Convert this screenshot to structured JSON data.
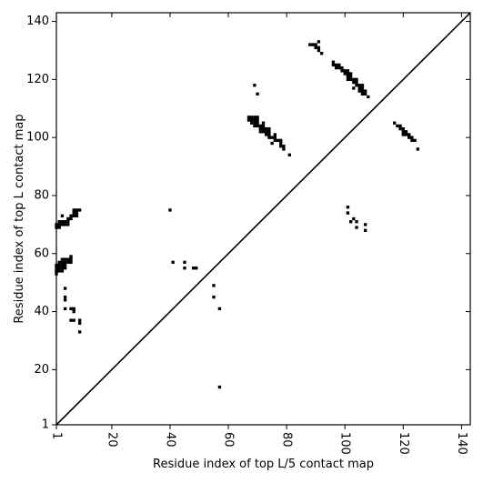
{
  "chart_data": {
    "type": "scatter",
    "title": "",
    "xlabel": "Residue index of top L/5 contact map",
    "ylabel": "Residue index of top L contact map",
    "xlim": [
      1,
      143
    ],
    "ylim": [
      1,
      143
    ],
    "xticks": [
      1,
      20,
      40,
      60,
      80,
      100,
      120,
      140
    ],
    "yticks": [
      1,
      20,
      40,
      60,
      80,
      100,
      120,
      140
    ],
    "xtick_rotation": -90,
    "grid": false,
    "diagonal": true,
    "marker": "square",
    "marker_color": "#000000",
    "series": [
      {
        "points": [
          [
            1,
            53
          ],
          [
            1,
            54
          ],
          [
            1,
            55
          ],
          [
            1,
            56
          ],
          [
            1,
            69
          ],
          [
            1,
            70
          ],
          [
            2,
            54
          ],
          [
            2,
            55
          ],
          [
            2,
            56
          ],
          [
            2,
            57
          ],
          [
            2,
            69
          ],
          [
            2,
            70
          ],
          [
            2,
            71
          ],
          [
            3,
            54
          ],
          [
            3,
            55
          ],
          [
            3,
            56
          ],
          [
            3,
            57
          ],
          [
            3,
            58
          ],
          [
            3,
            70
          ],
          [
            3,
            71
          ],
          [
            3,
            73
          ],
          [
            4,
            41
          ],
          [
            4,
            44
          ],
          [
            4,
            45
          ],
          [
            4,
            48
          ],
          [
            4,
            55
          ],
          [
            4,
            56
          ],
          [
            4,
            57
          ],
          [
            4,
            58
          ],
          [
            4,
            70
          ],
          [
            4,
            71
          ],
          [
            5,
            57
          ],
          [
            5,
            58
          ],
          [
            5,
            70
          ],
          [
            5,
            71
          ],
          [
            5,
            72
          ],
          [
            6,
            37
          ],
          [
            6,
            41
          ],
          [
            6,
            57
          ],
          [
            6,
            58
          ],
          [
            6,
            59
          ],
          [
            6,
            72
          ],
          [
            6,
            73
          ],
          [
            7,
            37
          ],
          [
            7,
            40
          ],
          [
            7,
            41
          ],
          [
            7,
            73
          ],
          [
            7,
            74
          ],
          [
            7,
            75
          ],
          [
            8,
            73
          ],
          [
            8,
            74
          ],
          [
            8,
            75
          ],
          [
            9,
            33
          ],
          [
            9,
            36
          ],
          [
            9,
            37
          ],
          [
            9,
            75
          ],
          [
            40,
            75
          ],
          [
            41,
            57
          ],
          [
            45,
            55
          ],
          [
            45,
            57
          ],
          [
            48,
            55
          ],
          [
            49,
            55
          ],
          [
            55,
            45
          ],
          [
            55,
            49
          ],
          [
            57,
            14
          ],
          [
            57,
            41
          ],
          [
            67,
            106
          ],
          [
            67,
            107
          ],
          [
            68,
            105
          ],
          [
            68,
            106
          ],
          [
            68,
            107
          ],
          [
            69,
            104
          ],
          [
            69,
            105
          ],
          [
            69,
            106
          ],
          [
            69,
            107
          ],
          [
            69,
            118
          ],
          [
            70,
            104
          ],
          [
            70,
            105
          ],
          [
            70,
            106
          ],
          [
            70,
            107
          ],
          [
            70,
            115
          ],
          [
            71,
            102
          ],
          [
            71,
            103
          ],
          [
            71,
            104
          ],
          [
            72,
            102
          ],
          [
            72,
            103
          ],
          [
            72,
            104
          ],
          [
            72,
            105
          ],
          [
            73,
            101
          ],
          [
            73,
            102
          ],
          [
            73,
            103
          ],
          [
            74,
            100
          ],
          [
            74,
            101
          ],
          [
            74,
            102
          ],
          [
            74,
            103
          ],
          [
            75,
            98
          ],
          [
            75,
            100
          ],
          [
            76,
            99
          ],
          [
            76,
            100
          ],
          [
            76,
            101
          ],
          [
            77,
            99
          ],
          [
            78,
            97
          ],
          [
            78,
            98
          ],
          [
            78,
            99
          ],
          [
            79,
            96
          ],
          [
            79,
            97
          ],
          [
            81,
            94
          ],
          [
            88,
            132
          ],
          [
            89,
            132
          ],
          [
            90,
            131
          ],
          [
            90,
            132
          ],
          [
            91,
            130
          ],
          [
            91,
            131
          ],
          [
            91,
            133
          ],
          [
            92,
            129
          ],
          [
            96,
            125
          ],
          [
            96,
            126
          ],
          [
            97,
            124
          ],
          [
            97,
            125
          ],
          [
            98,
            124
          ],
          [
            98,
            125
          ],
          [
            99,
            123
          ],
          [
            99,
            124
          ],
          [
            100,
            122
          ],
          [
            100,
            123
          ],
          [
            101,
            76
          ],
          [
            101,
            74
          ],
          [
            101,
            120
          ],
          [
            101,
            121
          ],
          [
            101,
            122
          ],
          [
            101,
            123
          ],
          [
            102,
            71
          ],
          [
            102,
            120
          ],
          [
            102,
            121
          ],
          [
            102,
            122
          ],
          [
            103,
            72
          ],
          [
            103,
            117
          ],
          [
            103,
            119
          ],
          [
            103,
            120
          ],
          [
            104,
            69
          ],
          [
            104,
            71
          ],
          [
            104,
            118
          ],
          [
            104,
            119
          ],
          [
            104,
            120
          ],
          [
            105,
            116
          ],
          [
            105,
            117
          ],
          [
            105,
            118
          ],
          [
            106,
            115
          ],
          [
            106,
            116
          ],
          [
            106,
            117
          ],
          [
            106,
            118
          ],
          [
            107,
            68
          ],
          [
            107,
            70
          ],
          [
            107,
            115
          ],
          [
            107,
            116
          ],
          [
            108,
            114
          ],
          [
            117,
            105
          ],
          [
            118,
            104
          ],
          [
            119,
            103
          ],
          [
            119,
            104
          ],
          [
            120,
            101
          ],
          [
            120,
            102
          ],
          [
            120,
            103
          ],
          [
            121,
            101
          ],
          [
            121,
            102
          ],
          [
            122,
            100
          ],
          [
            122,
            101
          ],
          [
            123,
            99
          ],
          [
            123,
            100
          ],
          [
            124,
            99
          ],
          [
            125,
            96
          ]
        ]
      }
    ]
  }
}
